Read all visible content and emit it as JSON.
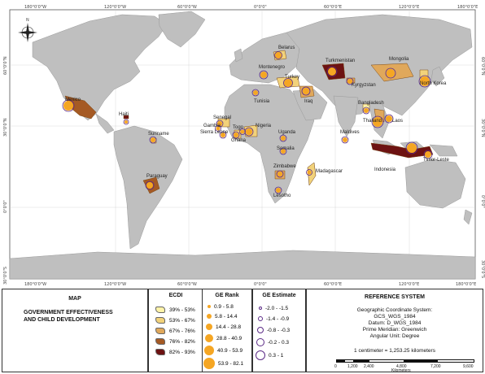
{
  "coords": {
    "top": [
      "180°0'0\"W",
      "120°0'0\"W",
      "60°0'0\"W",
      "0°0'0\"",
      "60°0'0\"E",
      "120°0'0\"E",
      "180°0'0\"E"
    ],
    "left": [
      "60°0'0\"N",
      "30°0'0\"N",
      "0°0'0\"",
      "30°0'0\"S",
      "60°0'0\"S"
    ],
    "right": [
      "60°0'0\"N",
      "30°0'0\"N",
      "0°0'0\"",
      "30°0'0\"S",
      "60°0'0\"S"
    ],
    "bottom": [
      "180°0'0\"W",
      "120°0'0\"W",
      "60°0'0\"W",
      "0°0'0\"",
      "60°0'0\"E",
      "120°0'0\"E",
      "180°0'0\"E"
    ]
  },
  "north_arrow": "N",
  "countries": {
    "belarus": "Belarus",
    "montenegro": "Montenegro",
    "turkey": "Turkey",
    "tunisia": "Tunisia",
    "iraq": "Iraq",
    "turkmenistan": "Turkmenistan",
    "mongolia": "Mongolia",
    "kyrgyzstan": "Kyrgyzstan",
    "north_korea": "North Korea",
    "bangladesh": "Bangladesh",
    "thailand": "Thailand",
    "laos": "Laos",
    "mexico": "Mexico",
    "haiti": "Haiti",
    "senegal": "Senegal",
    "gambia": "Gambia",
    "togo": "Togo",
    "sierra_leone": "Sierra Leone",
    "nigeria": "Nigeria",
    "ghana": "Ghana",
    "suriname": "Suriname",
    "uganda": "Uganda",
    "maldives": "Maldives",
    "somalia": "Somalia",
    "indonesia": "Indonesia",
    "timor_leste": "Timor-Leste",
    "zimbabwe": "Zimbabwe",
    "madagascar": "Madagascar",
    "lesotho": "Lesotho",
    "paraguay": "Paraguay"
  },
  "title_panel": {
    "heading": "MAP",
    "subtitle_line1": "GOVERNMENT EFFECTIVENESS",
    "subtitle_line2": "AND CHILD DEVELOPMENT"
  },
  "ecdi_legend": {
    "title": "ECDI",
    "items": [
      {
        "label": "39% - 53%",
        "color": "#fff3a8"
      },
      {
        "label": "53% - 67%",
        "color": "#f2d27a"
      },
      {
        "label": "67% - 76%",
        "color": "#e0a85b"
      },
      {
        "label": "76% - 82%",
        "color": "#a55a24"
      },
      {
        "label": "82% - 93%",
        "color": "#6d1212"
      }
    ]
  },
  "ge_rank_legend": {
    "title": "GE Rank",
    "color": "#f5a623",
    "items": [
      {
        "label": "0.9 - 5.8"
      },
      {
        "label": "5.8 - 14.4"
      },
      {
        "label": "14.4 - 28.8"
      },
      {
        "label": "28.8 - 40.9"
      },
      {
        "label": "40.9 - 53.9"
      },
      {
        "label": "53.9 - 82.1"
      }
    ]
  },
  "ge_estimate_legend": {
    "title": "GE Estimate",
    "color": "#5b2a86",
    "items": [
      {
        "label": "-2.0 - -1.5"
      },
      {
        "label": "-1.4 - -0.9"
      },
      {
        "label": "-0.8 - -0.3"
      },
      {
        "label": "-0.2 - 0.3"
      },
      {
        "label": "0.3 - 1"
      }
    ]
  },
  "reference": {
    "title": "REFERENCE SYSTEM",
    "line1": "Geographic Coordinate System:",
    "line2": "GCS_WGS_1984",
    "line3": "Datum: D_WGS_1984",
    "line4": "Prime Meridian: Greenwich",
    "line5": "Angular Unit: Degree",
    "scale_text": "1 centimeter = 1,253.25 kilometers",
    "scale_ticks": [
      "0",
      "1,200",
      "2,400",
      "4,800",
      "7,200",
      "9,600"
    ],
    "scale_unit": "Kilometers"
  },
  "colors": {
    "ocean": "#ffffff",
    "land": "#bfbfbf",
    "border": "#9a9a9a"
  }
}
